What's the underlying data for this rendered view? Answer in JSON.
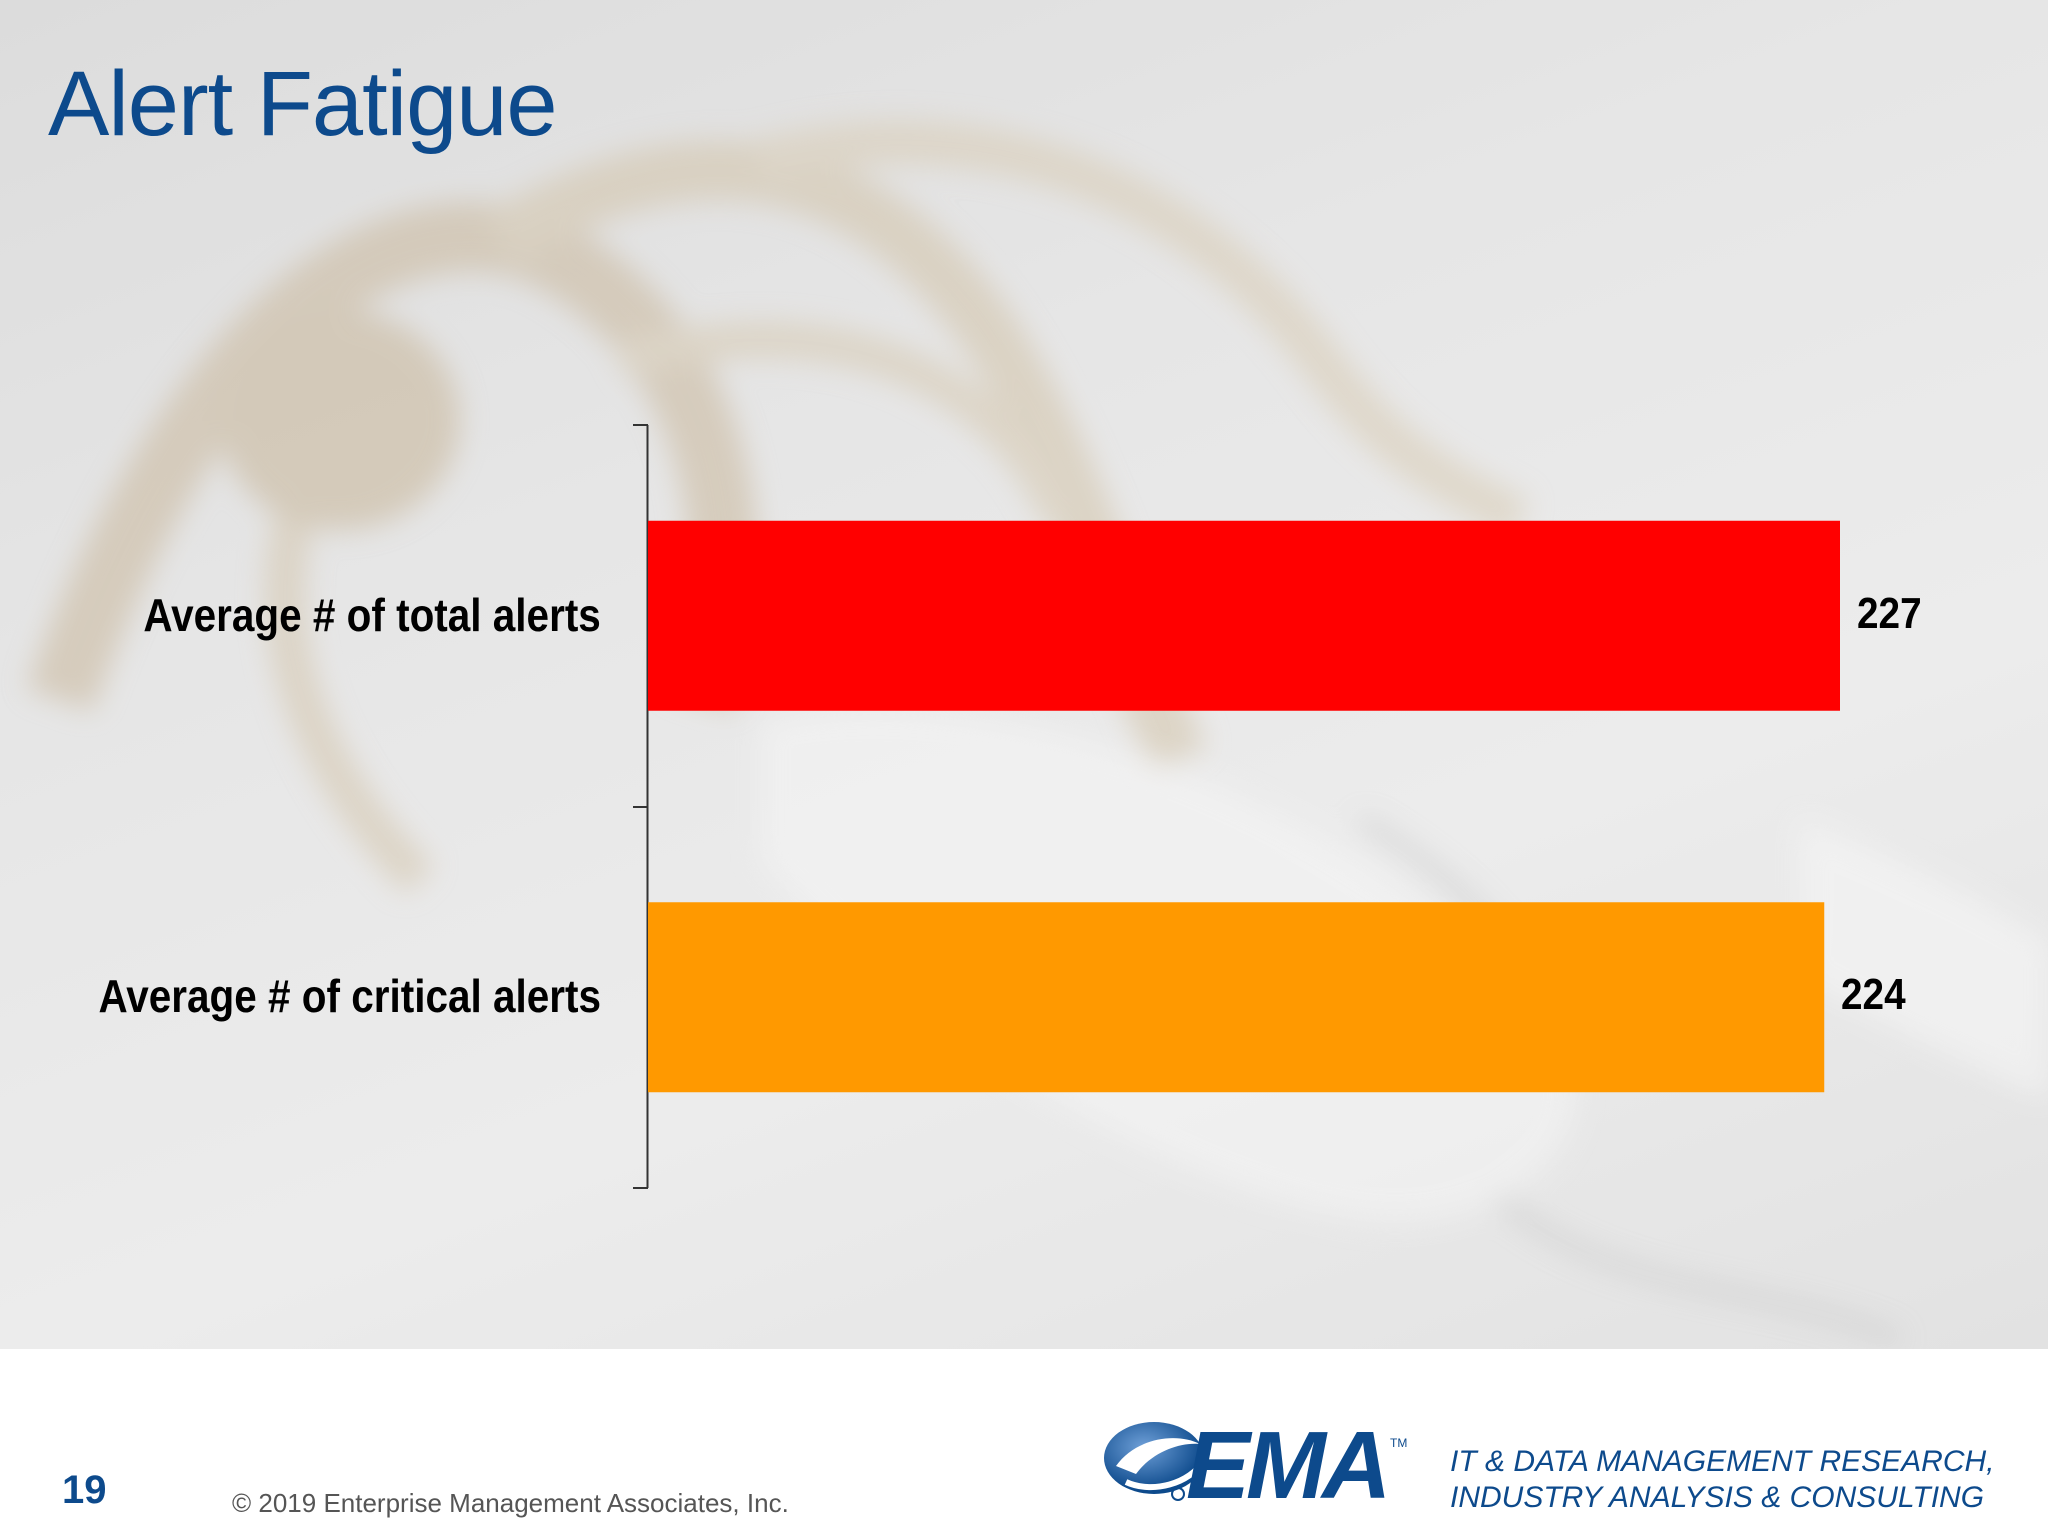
{
  "slide": {
    "title": "Alert Fatigue",
    "page_number": "19",
    "copyright": "© 2019 Enterprise Management Associates, Inc."
  },
  "brand": {
    "logo_text": "EMA",
    "logo_tm": "TM",
    "tagline_line1": "IT & DATA MANAGEMENT RESEARCH,",
    "tagline_line2": "INDUSTRY ANALYSIS & CONSULTING",
    "logo_icon": "ema-swoosh-icon",
    "color": "#0d4a8c"
  },
  "chart_data": {
    "type": "bar",
    "orientation": "horizontal",
    "categories": [
      "Average # of total alerts",
      "Average # of critical alerts"
    ],
    "values": [
      227,
      224
    ],
    "value_labels": [
      "227",
      "224"
    ],
    "colors": [
      "#ff0000",
      "#ff9900"
    ],
    "xlim": [
      0,
      227
    ],
    "grid": false,
    "legend": "none"
  }
}
